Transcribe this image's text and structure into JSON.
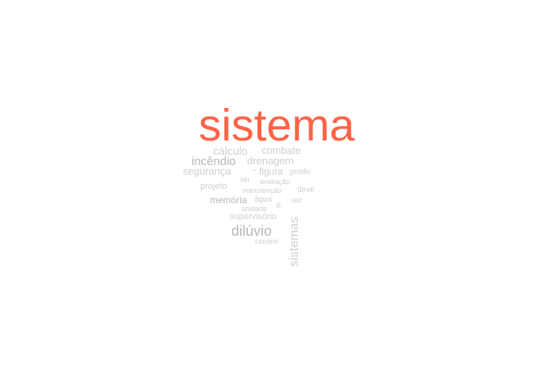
{
  "cloud": {
    "accent_color": "#ff6347",
    "word_color": "#cfcfcf",
    "words": {
      "sistema": "sistema",
      "calculo": "cálculo",
      "combate": "combate",
      "incendio": "incêndio",
      "drenagem": "drenagem",
      "seguranca": "segurança",
      "dash": "–",
      "figura": "figura",
      "gestao": "gestão",
      "ser": "ser",
      "avaliacao": "avaliação",
      "projeto": "projeto",
      "manutencao": "manutenção",
      "deve": "deve",
      "memoria": "memória",
      "agua": "água",
      "raiz": "raiz",
      "e": "é",
      "unidade": "unidade",
      "supervisorio": "supervisório",
      "diluvio": "dilúvio",
      "sistemas": "sistemas",
      "cenario": "cenário"
    }
  }
}
